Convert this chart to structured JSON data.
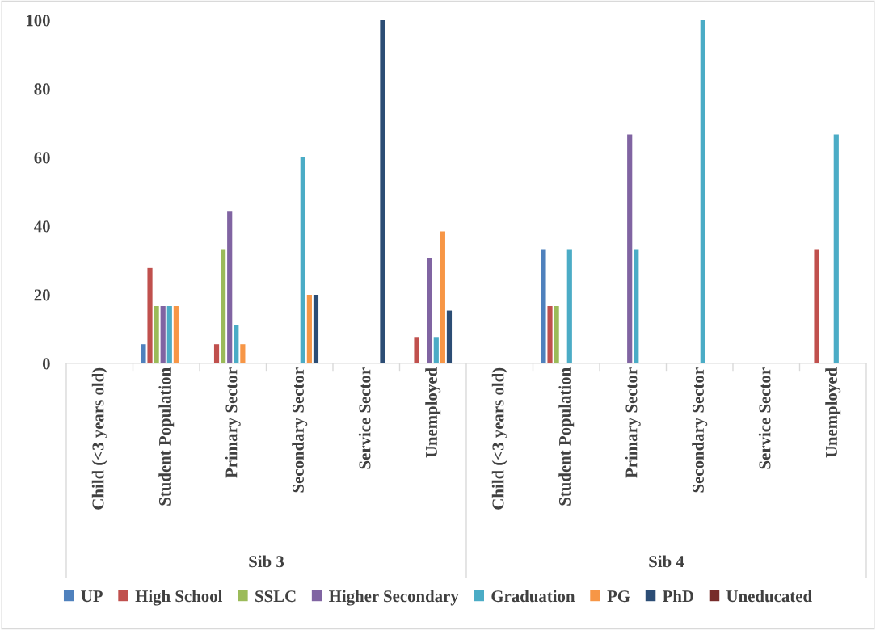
{
  "chart_data": {
    "type": "bar",
    "categories": [
      "Child (<3 years old)",
      "Student Population",
      "Primary Sector",
      "Secondary Sector",
      "Service Sector",
      "Unemployed",
      "Child (<3 years old)",
      "Student Population",
      "Primary Sector",
      "Secondary Sector",
      "Service Sector",
      "Unemployed"
    ],
    "series": [
      {
        "name": "UP",
        "color": "#4f81bd",
        "values": [
          0,
          5.6,
          0,
          0,
          0,
          0,
          0,
          33.3,
          0,
          0,
          0,
          0
        ]
      },
      {
        "name": "High School",
        "color": "#c0504d",
        "values": [
          0,
          27.8,
          5.6,
          0,
          0,
          7.7,
          0,
          16.7,
          0,
          0,
          0,
          33.3
        ]
      },
      {
        "name": "SSLC",
        "color": "#9bbb59",
        "values": [
          0,
          16.7,
          33.3,
          0,
          0,
          0,
          0,
          16.7,
          0,
          0,
          0,
          0
        ]
      },
      {
        "name": "Higher Secondary",
        "color": "#8064a2",
        "values": [
          0,
          16.7,
          44.4,
          0,
          0,
          30.8,
          0,
          0,
          66.7,
          0,
          0,
          0
        ]
      },
      {
        "name": "Graduation",
        "color": "#4bacc6",
        "values": [
          0,
          16.7,
          11.1,
          60,
          0,
          7.7,
          0,
          33.3,
          33.3,
          100,
          0,
          66.7
        ]
      },
      {
        "name": "PG",
        "color": "#f79646",
        "values": [
          0,
          16.7,
          5.6,
          20,
          0,
          38.5,
          0,
          0,
          0,
          0,
          0,
          0
        ]
      },
      {
        "name": "PhD",
        "color": "#2c4d75",
        "values": [
          0,
          0,
          0,
          20,
          100,
          15.4,
          0,
          0,
          0,
          0,
          0,
          0
        ]
      },
      {
        "name": "Uneducated",
        "color": "#772c2a",
        "values": [
          0,
          0,
          0,
          0,
          0,
          0,
          0,
          0,
          0,
          0,
          0,
          0
        ]
      }
    ],
    "annotations": [
      "Sib 3",
      "Sib 4"
    ],
    "ylim": [
      0,
      100
    ],
    "yticks": [
      0,
      20,
      40,
      60,
      80,
      100
    ],
    "grid": false,
    "legend": "bottom"
  }
}
